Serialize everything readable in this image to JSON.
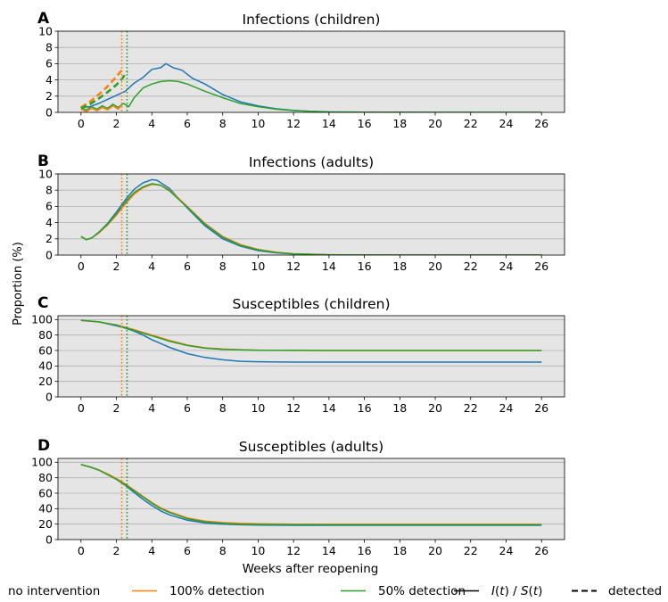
{
  "figure": {
    "ylabel": "Proportion (%)",
    "xlabel": "Weeks after reopening"
  },
  "legend": {
    "items": [
      {
        "label": "no intervention",
        "color": "#1f77b4",
        "style": "solid",
        "show_line": false
      },
      {
        "label": "100% detection",
        "color": "#ff7f0e",
        "style": "solid",
        "show_line": true
      },
      {
        "label": "50% detection",
        "color": "#2ca02c",
        "style": "solid",
        "show_line": true
      },
      {
        "label": "I(t) / S(t)",
        "color": "#000000",
        "style": "solid",
        "show_line": true
      },
      {
        "label": "detected",
        "color": "#000000",
        "style": "dashed",
        "show_line": true
      }
    ]
  },
  "colors": {
    "no_intervention": "#1f77b4",
    "detection_100": "#ff7f0e",
    "detection_50": "#2ca02c",
    "panel_bg": "#e5e5e5",
    "grid": "#b0b0b0"
  },
  "chart_data": [
    {
      "type": "line",
      "panel_letter": "A",
      "title": "Infections (children)",
      "xlabel": "",
      "ylabel": "",
      "xlim": [
        -1.3,
        27.3
      ],
      "ylim": [
        0,
        10
      ],
      "xticks": [
        0,
        2,
        4,
        6,
        8,
        10,
        12,
        14,
        16,
        18,
        20,
        22,
        24,
        26
      ],
      "yticks": [
        0,
        2,
        4,
        6,
        8,
        10
      ],
      "grid": "horizontal",
      "vlines": [
        {
          "x": 2.3,
          "color": "#ff7f0e",
          "style": "dotted"
        },
        {
          "x": 2.6,
          "color": "#2ca02c",
          "style": "dotted"
        }
      ],
      "series": [
        {
          "name": "no intervention",
          "color": "#1f77b4",
          "style": "solid",
          "x": [
            0,
            0.5,
            1,
            1.5,
            2,
            2.5,
            3,
            3.5,
            4,
            4.5,
            4.8,
            5.2,
            5.7,
            6.3,
            7,
            8,
            9,
            10,
            11,
            12,
            13,
            14,
            16,
            18,
            20,
            22,
            24,
            26
          ],
          "y": [
            0.6,
            0.7,
            1.1,
            1.6,
            2.1,
            2.6,
            3.6,
            4.3,
            5.3,
            5.5,
            6.0,
            5.5,
            5.2,
            4.2,
            3.5,
            2.2,
            1.3,
            0.8,
            0.45,
            0.25,
            0.12,
            0.06,
            0.02,
            0.01,
            0,
            0,
            0,
            0
          ]
        },
        {
          "name": "50% detection",
          "color": "#2ca02c",
          "style": "solid",
          "x": [
            0,
            0.3,
            0.6,
            0.9,
            1.2,
            1.5,
            1.8,
            2.1,
            2.4,
            2.7,
            3,
            3.5,
            4,
            4.5,
            5,
            5.5,
            6,
            7,
            8,
            9,
            10,
            11,
            12,
            13,
            14,
            16,
            18,
            20,
            22,
            24,
            26
          ],
          "y": [
            0.6,
            0.3,
            0.7,
            0.4,
            0.8,
            0.5,
            1.0,
            0.6,
            1.1,
            0.7,
            1.8,
            3.0,
            3.5,
            3.8,
            3.9,
            3.8,
            3.5,
            2.6,
            1.8,
            1.1,
            0.7,
            0.4,
            0.22,
            0.12,
            0.06,
            0.02,
            0.01,
            0,
            0,
            0,
            0
          ]
        },
        {
          "name": "100% detection",
          "color": "#ff7f0e",
          "style": "solid",
          "x": [
            0,
            0.3,
            0.6,
            0.9,
            1.2,
            1.5,
            1.8,
            2.1,
            2.3
          ],
          "y": [
            0.4,
            0.1,
            0.5,
            0.2,
            0.6,
            0.3,
            0.8,
            0.4,
            0.9
          ]
        },
        {
          "name": "100% detection (detected)",
          "color": "#ff7f0e",
          "style": "dashed",
          "x": [
            0,
            0.5,
            1,
            1.5,
            2,
            2.3
          ],
          "y": [
            0.6,
            1.3,
            2.2,
            3.2,
            4.4,
            5.2
          ]
        },
        {
          "name": "50% detection (detected)",
          "color": "#2ca02c",
          "style": "dashed",
          "x": [
            0,
            0.5,
            1,
            1.5,
            2,
            2.3,
            2.6
          ],
          "y": [
            0.5,
            1.0,
            1.7,
            2.5,
            3.4,
            4.1,
            5.0
          ]
        }
      ]
    },
    {
      "type": "line",
      "panel_letter": "B",
      "title": "Infections (adults)",
      "xlabel": "",
      "ylabel": "",
      "xlim": [
        -1.3,
        27.3
      ],
      "ylim": [
        0,
        10
      ],
      "xticks": [
        0,
        2,
        4,
        6,
        8,
        10,
        12,
        14,
        16,
        18,
        20,
        22,
        24,
        26
      ],
      "yticks": [
        0,
        2,
        4,
        6,
        8,
        10
      ],
      "grid": "horizontal",
      "vlines": [
        {
          "x": 2.3,
          "color": "#ff7f0e",
          "style": "dotted"
        },
        {
          "x": 2.6,
          "color": "#2ca02c",
          "style": "dotted"
        }
      ],
      "series": [
        {
          "name": "no intervention",
          "color": "#1f77b4",
          "style": "solid",
          "x": [
            0,
            0.3,
            0.6,
            1,
            1.5,
            2,
            2.5,
            3,
            3.5,
            4,
            4.3,
            5,
            6,
            7,
            8,
            9,
            10,
            11,
            12,
            14,
            16,
            18,
            20,
            22,
            24,
            26
          ],
          "y": [
            2.3,
            1.9,
            2.1,
            2.8,
            3.9,
            5.3,
            6.8,
            8.1,
            8.9,
            9.3,
            9.2,
            8.2,
            5.8,
            3.6,
            2.0,
            1.1,
            0.55,
            0.27,
            0.13,
            0.03,
            0.01,
            0,
            0,
            0,
            0,
            0
          ]
        },
        {
          "name": "100% detection",
          "color": "#ff7f0e",
          "style": "solid",
          "x": [
            0,
            0.3,
            0.6,
            1,
            1.5,
            2,
            2.5,
            3,
            3.5,
            4,
            4.5,
            5,
            6,
            7,
            8,
            9,
            10,
            11,
            12,
            14,
            16,
            18,
            20,
            22,
            24,
            26
          ],
          "y": [
            2.3,
            1.9,
            2.1,
            2.7,
            3.7,
            4.9,
            6.3,
            7.5,
            8.3,
            8.7,
            8.6,
            8.0,
            6.0,
            3.9,
            2.3,
            1.3,
            0.7,
            0.35,
            0.17,
            0.04,
            0.01,
            0,
            0,
            0,
            0,
            0
          ]
        },
        {
          "name": "50% detection",
          "color": "#2ca02c",
          "style": "solid",
          "x": [
            0,
            0.3,
            0.6,
            1,
            1.5,
            2,
            2.5,
            3,
            3.5,
            4,
            4.5,
            5,
            6,
            7,
            8,
            9,
            10,
            11,
            12,
            14,
            16,
            18,
            20,
            22,
            24,
            26
          ],
          "y": [
            2.3,
            1.9,
            2.1,
            2.8,
            3.8,
            5.1,
            6.5,
            7.7,
            8.4,
            8.8,
            8.6,
            7.9,
            5.9,
            3.8,
            2.2,
            1.2,
            0.65,
            0.32,
            0.15,
            0.035,
            0.01,
            0,
            0,
            0,
            0,
            0
          ]
        }
      ]
    },
    {
      "type": "line",
      "panel_letter": "C",
      "title": "Susceptibles (children)",
      "xlabel": "",
      "ylabel": "",
      "xlim": [
        -1.3,
        27.3
      ],
      "ylim": [
        0,
        105
      ],
      "xticks": [
        0,
        2,
        4,
        6,
        8,
        10,
        12,
        14,
        16,
        18,
        20,
        22,
        24,
        26
      ],
      "yticks": [
        0,
        20,
        40,
        60,
        80,
        100
      ],
      "grid": "horizontal",
      "vlines": [
        {
          "x": 2.3,
          "color": "#ff7f0e",
          "style": "dotted"
        },
        {
          "x": 2.6,
          "color": "#2ca02c",
          "style": "dotted"
        }
      ],
      "series": [
        {
          "name": "no intervention",
          "color": "#1f77b4",
          "style": "solid",
          "x": [
            0,
            1,
            2,
            2.5,
            3,
            3.5,
            4,
            4.5,
            5,
            5.5,
            6,
            7,
            8,
            9,
            10,
            12,
            14,
            16,
            18,
            20,
            22,
            24,
            26
          ],
          "y": [
            99,
            97,
            92,
            89,
            85,
            80,
            74,
            69,
            64,
            60,
            56,
            51,
            48,
            46,
            45.5,
            45,
            45,
            45,
            45,
            45,
            45,
            45,
            45
          ]
        },
        {
          "name": "100% detection",
          "color": "#ff7f0e",
          "style": "solid",
          "x": [
            0,
            1,
            2,
            3,
            4,
            5,
            6,
            7,
            8,
            9,
            10,
            12,
            14,
            16,
            18,
            20,
            22,
            24,
            26
          ],
          "y": [
            99,
            97,
            93,
            87,
            80,
            73,
            67,
            63.5,
            62,
            61,
            60.5,
            60,
            60,
            60,
            60,
            60,
            60,
            60,
            60
          ]
        },
        {
          "name": "50% detection",
          "color": "#2ca02c",
          "style": "solid",
          "x": [
            0,
            1,
            2,
            3,
            4,
            5,
            6,
            7,
            8,
            9,
            10,
            12,
            14,
            16,
            18,
            20,
            22,
            24,
            26
          ],
          "y": [
            99,
            97,
            93,
            86,
            79,
            72,
            66.5,
            63,
            61.5,
            60.8,
            60.4,
            60.2,
            60,
            60,
            60,
            60,
            60,
            60,
            60
          ]
        }
      ]
    },
    {
      "type": "line",
      "panel_letter": "D",
      "title": "Susceptibles (adults)",
      "xlabel": "Weeks after reopening",
      "ylabel": "",
      "xlim": [
        -1.3,
        27.3
      ],
      "ylim": [
        0,
        105
      ],
      "xticks": [
        0,
        2,
        4,
        6,
        8,
        10,
        12,
        14,
        16,
        18,
        20,
        22,
        24,
        26
      ],
      "yticks": [
        0,
        20,
        40,
        60,
        80,
        100
      ],
      "grid": "horizontal",
      "vlines": [
        {
          "x": 2.3,
          "color": "#ff7f0e",
          "style": "dotted"
        },
        {
          "x": 2.6,
          "color": "#2ca02c",
          "style": "dotted"
        }
      ],
      "series": [
        {
          "name": "no intervention",
          "color": "#1f77b4",
          "style": "solid",
          "x": [
            0,
            0.5,
            1,
            1.5,
            2,
            2.5,
            3,
            3.5,
            4,
            4.5,
            5,
            6,
            7,
            8,
            9,
            10,
            12,
            14,
            16,
            18,
            20,
            22,
            24,
            26
          ],
          "y": [
            97,
            94,
            90,
            84,
            78,
            70,
            61,
            52,
            44,
            37,
            32,
            25,
            21.5,
            20,
            19.2,
            18.8,
            18.5,
            18.5,
            18.5,
            18.5,
            18.5,
            18.5,
            18.5,
            18.5
          ]
        },
        {
          "name": "100% detection",
          "color": "#ff7f0e",
          "style": "solid",
          "x": [
            0,
            0.5,
            1,
            1.5,
            2,
            2.5,
            3,
            3.5,
            4,
            4.5,
            5,
            6,
            7,
            8,
            9,
            10,
            12,
            14,
            16,
            18,
            20,
            22,
            24,
            26
          ],
          "y": [
            97,
            94,
            90,
            85,
            79,
            72,
            64,
            56,
            48,
            41,
            36,
            28,
            24,
            22,
            21,
            20.5,
            20,
            20,
            20,
            20,
            20,
            20,
            20,
            20
          ]
        },
        {
          "name": "50% detection",
          "color": "#2ca02c",
          "style": "solid",
          "x": [
            0,
            0.5,
            1,
            1.5,
            2,
            2.5,
            3,
            3.5,
            4,
            4.5,
            5,
            6,
            7,
            8,
            9,
            10,
            12,
            14,
            16,
            18,
            20,
            22,
            24,
            26
          ],
          "y": [
            97,
            94,
            90,
            84,
            78,
            71,
            63,
            55,
            47,
            40,
            35,
            27,
            23,
            21,
            20,
            19.6,
            19.3,
            19.2,
            19.2,
            19.2,
            19.2,
            19.2,
            19.2,
            19.2
          ]
        }
      ]
    }
  ]
}
